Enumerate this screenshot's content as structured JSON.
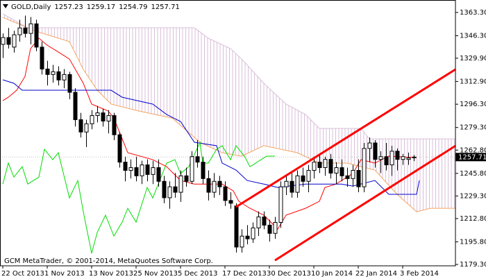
{
  "chart_data": {
    "type": "candlestick",
    "title": "GOLD,Daily",
    "credit": "GCM MetaTrader, © 2001-2014, MetaQuotes Software Corp.",
    "up_color": "#ffffff",
    "down_color": "#000000",
    "wick_color": "#000000",
    "x": [
      0,
      1,
      2,
      3,
      4,
      5,
      6,
      7,
      8,
      9,
      10,
      11,
      12,
      13,
      14,
      15,
      16,
      17,
      18,
      19,
      20,
      21,
      22,
      23,
      24,
      25,
      26,
      27,
      28,
      29,
      30,
      31,
      32,
      33,
      34,
      35,
      36,
      37,
      38,
      39,
      40,
      41,
      42,
      43,
      44,
      45,
      46,
      47,
      48,
      49,
      50,
      51,
      52,
      53,
      54,
      55,
      56,
      57,
      58,
      59,
      60,
      61,
      62,
      63,
      64,
      65,
      66,
      67,
      68,
      69,
      70,
      71,
      72,
      73,
      74
    ],
    "open": [
      1340,
      1345,
      1338,
      1347,
      1352,
      1348,
      1355,
      1338,
      1322,
      1318,
      1320,
      1314,
      1318,
      1305,
      1285,
      1276,
      1282,
      1288,
      1290,
      1284,
      1288,
      1274,
      1254,
      1248,
      1250,
      1244,
      1252,
      1245,
      1250,
      1240,
      1228,
      1236,
      1232,
      1244,
      1240,
      1258,
      1254,
      1242,
      1232,
      1240,
      1236,
      1226,
      1222,
      1192,
      1200,
      1198,
      1206,
      1214,
      1208,
      1202,
      1210,
      1236,
      1240,
      1232,
      1244,
      1240,
      1248,
      1254,
      1250,
      1256,
      1246,
      1250,
      1244,
      1242,
      1248,
      1236,
      1264,
      1268,
      1256,
      1258,
      1252,
      1262,
      1256,
      1256,
      1257.23
    ],
    "high": [
      1348,
      1352,
      1350,
      1358,
      1361,
      1360,
      1358,
      1342,
      1328,
      1325,
      1324,
      1322,
      1320,
      1308,
      1290,
      1285,
      1292,
      1295,
      1293,
      1292,
      1290,
      1276,
      1258,
      1256,
      1258,
      1255,
      1256,
      1255,
      1256,
      1244,
      1240,
      1246,
      1248,
      1250,
      1262,
      1270,
      1258,
      1248,
      1246,
      1244,
      1240,
      1232,
      1224,
      1205,
      1208,
      1210,
      1218,
      1218,
      1212,
      1214,
      1240,
      1244,
      1246,
      1248,
      1250,
      1252,
      1258,
      1260,
      1258,
      1260,
      1254,
      1256,
      1250,
      1252,
      1256,
      1268,
      1272,
      1270,
      1262,
      1268,
      1266,
      1264,
      1260,
      1261,
      1259.17
    ],
    "low": [
      1330,
      1337,
      1334,
      1342,
      1345,
      1340,
      1335,
      1318,
      1310,
      1312,
      1310,
      1308,
      1300,
      1280,
      1272,
      1265,
      1278,
      1283,
      1280,
      1275,
      1270,
      1250,
      1240,
      1242,
      1240,
      1238,
      1240,
      1238,
      1236,
      1224,
      1220,
      1228,
      1225,
      1236,
      1238,
      1250,
      1238,
      1226,
      1228,
      1230,
      1222,
      1220,
      1188,
      1188,
      1194,
      1195,
      1200,
      1205,
      1196,
      1198,
      1206,
      1230,
      1228,
      1228,
      1236,
      1232,
      1242,
      1246,
      1244,
      1242,
      1238,
      1240,
      1236,
      1236,
      1232,
      1232,
      1254,
      1250,
      1246,
      1248,
      1244,
      1248,
      1252,
      1252,
      1254.79
    ],
    "close": [
      1345,
      1340,
      1347,
      1352,
      1348,
      1355,
      1338,
      1322,
      1318,
      1320,
      1314,
      1318,
      1305,
      1285,
      1276,
      1282,
      1288,
      1290,
      1284,
      1288,
      1274,
      1254,
      1248,
      1250,
      1244,
      1252,
      1245,
      1250,
      1240,
      1228,
      1236,
      1232,
      1244,
      1240,
      1258,
      1254,
      1242,
      1232,
      1240,
      1236,
      1226,
      1224,
      1192,
      1200,
      1198,
      1206,
      1214,
      1208,
      1202,
      1210,
      1236,
      1240,
      1232,
      1244,
      1240,
      1248,
      1254,
      1250,
      1256,
      1246,
      1250,
      1244,
      1242,
      1248,
      1236,
      1264,
      1268,
      1256,
      1258,
      1252,
      1262,
      1256,
      1258,
      1257,
      1257.71
    ],
    "xlim": [
      -0.5,
      81.5
    ],
    "xticks": [
      {
        "value": 0,
        "label": "22 Oct 2013"
      },
      {
        "value": 8,
        "label": "1 Nov 2013"
      },
      {
        "value": 16,
        "label": "13 Nov 2013"
      },
      {
        "value": 24,
        "label": "25 Nov 2013"
      },
      {
        "value": 32,
        "label": "5 Dec 2013"
      },
      {
        "value": 40,
        "label": "17 Dec 2013"
      },
      {
        "value": 48,
        "label": "30 Dec 2013"
      },
      {
        "value": 56,
        "label": "10 Jan 2014"
      },
      {
        "value": 64,
        "label": "22 Jan 2014"
      },
      {
        "value": 72,
        "label": "3 Feb 2014"
      }
    ],
    "ylim": [
      1178.3,
      1372.4
    ],
    "yticks": [
      {
        "value": 1363.3,
        "label": "1363.30"
      },
      {
        "value": 1346.3,
        "label": "1346.30"
      },
      {
        "value": 1329.9,
        "label": "1329.90"
      },
      {
        "value": 1312.9,
        "label": "1312.90"
      },
      {
        "value": 1296.3,
        "label": "1296.30"
      },
      {
        "value": 1279.3,
        "label": "1279.30"
      },
      {
        "value": 1262.8,
        "label": "1262.80"
      },
      {
        "value": 1245.8,
        "label": "1245.80"
      },
      {
        "value": 1229.3,
        "label": "1229.30"
      },
      {
        "value": 1212.8,
        "label": "1212.80"
      },
      {
        "value": 1195.8,
        "label": "1195.80"
      },
      {
        "value": 1179.3,
        "label": "1179.30"
      }
    ],
    "price_line_color": "#c0c0c0",
    "cloud": {
      "hatch_color": "#d8bfd8",
      "span_a": {
        "color": "#f4a460",
        "x": [
          0,
          6,
          12,
          14.5,
          17,
          19.5,
          24.5,
          30.5,
          35.5,
          39.5,
          43,
          47,
          53,
          57,
          62,
          64.5,
          67,
          71,
          74.5,
          77,
          81.5
        ],
        "values": [
          1359.7,
          1349.6,
          1342,
          1321.7,
          1306.5,
          1296.4,
          1291.3,
          1286.2,
          1268.5,
          1260.9,
          1258.4,
          1266,
          1260.9,
          1253.3,
          1253.3,
          1250.7,
          1248.2,
          1230.5,
          1217.8,
          1220.3,
          1220.3
        ]
      },
      "span_b": {
        "color": "#d8bfd8",
        "x": [
          0,
          4.5,
          12,
          34.5,
          37,
          41,
          43,
          47,
          51,
          54.5,
          57,
          64.5,
          66,
          81.5
        ],
        "values": [
          1362.3,
          1352.1,
          1352.1,
          1352.1,
          1344.5,
          1336.9,
          1329.3,
          1311.6,
          1296.4,
          1288.8,
          1278.6,
          1278.6,
          1271,
          1271
        ]
      }
    },
    "lines": [
      {
        "color": "#ff0000",
        "width": 1,
        "x": [
          0,
          1,
          2.5,
          4,
          5,
          6.5,
          8,
          10,
          12,
          14.5,
          16,
          19,
          20,
          21.5,
          22.5,
          27,
          29.5,
          32,
          34.5,
          39.5,
          41.5,
          42.5,
          44.5,
          47,
          49.5,
          51,
          54.5,
          57,
          58,
          60,
          63,
          64.5,
          67,
          69.5,
          74.5
        ],
        "values": [
          1298.9,
          1301.4,
          1306.5,
          1316.6,
          1336.9,
          1344.5,
          1339.4,
          1334.4,
          1329.3,
          1311.6,
          1296.4,
          1291.3,
          1286.2,
          1271,
          1260.9,
          1255.8,
          1250.7,
          1240.6,
          1238,
          1238,
          1233,
          1225.4,
          1220.3,
          1215.3,
          1205.1,
          1215.3,
          1220.3,
          1225.4,
          1235.5,
          1238,
          1245.7,
          1255.8,
          1253.3,
          1258.4,
          1257.3
        ]
      },
      {
        "color": "#0000cc",
        "width": 1,
        "x": [
          0,
          2,
          3.5,
          19.5,
          21.5,
          27,
          29.5,
          32,
          34.5,
          38.5,
          39.5,
          42,
          44,
          47,
          49.5,
          54.5,
          61,
          63,
          67,
          69.5,
          74.5,
          75
        ],
        "values": [
          1314.1,
          1311.6,
          1306.5,
          1306.5,
          1301.4,
          1296.4,
          1288.8,
          1283.7,
          1268.5,
          1266,
          1253.3,
          1248.2,
          1240.6,
          1238,
          1235.5,
          1238,
          1238,
          1236.5,
          1240.6,
          1230.5,
          1230.5,
          1240.6
        ]
      },
      {
        "color": "#00dd00",
        "width": 1,
        "x": [
          0,
          1,
          2,
          3.5,
          4.5,
          6.5,
          7.5,
          9,
          10,
          12,
          13.5,
          14.5,
          16,
          17,
          18.5,
          20,
          21.5,
          22.5,
          24,
          26,
          27,
          28.5,
          29.5,
          31,
          32,
          33.5,
          35.5,
          36,
          37,
          38.5,
          39.5,
          41,
          42,
          43.5,
          44.5,
          46.5,
          47.5,
          49
        ],
        "values": [
          1238,
          1253.3,
          1243.1,
          1250.7,
          1238,
          1243.1,
          1263.4,
          1255.8,
          1260.9,
          1227.9,
          1240.6,
          1217.8,
          1187.4,
          1202.6,
          1215.3,
          1200,
          1210.2,
          1220.3,
          1210.2,
          1235.5,
          1227.9,
          1243.1,
          1253.3,
          1255.8,
          1245.7,
          1250.7,
          1268.5,
          1253.3,
          1253.3,
          1263.4,
          1266,
          1255.8,
          1266,
          1258.4,
          1250.7,
          1255.8,
          1258.4,
          1258.4
        ]
      },
      {
        "color": "#ff0000",
        "width": 3,
        "x": [
          42,
          81.5
        ],
        "values": [
          1221.3,
          1321.7
        ]
      },
      {
        "color": "#ff0000",
        "width": 3,
        "x": [
          49,
          81.5
        ],
        "values": [
          1182.3,
          1265.9
        ]
      }
    ]
  }
}
